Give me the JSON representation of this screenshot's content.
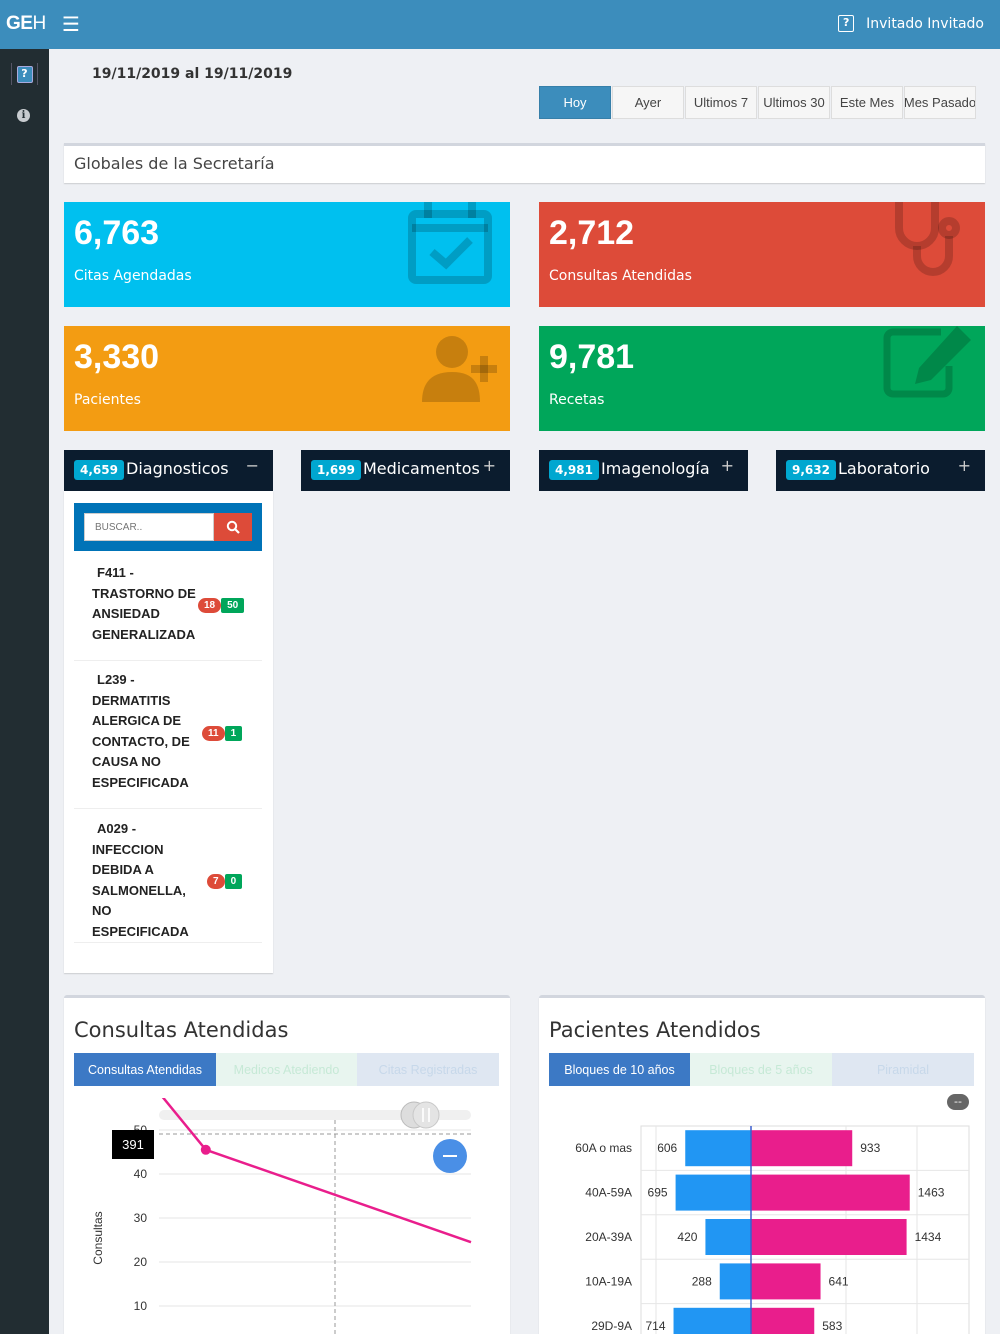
{
  "header": {
    "logo_bold": "GE",
    "logo_thin": "H",
    "menu_icon": "hamburger-icon",
    "help_icon": "?",
    "user_name": "Invitado Invitado"
  },
  "sidebar": {
    "items": [
      {
        "icon": "help-icon",
        "glyph": "?"
      },
      {
        "icon": "info-icon",
        "glyph": "i"
      }
    ]
  },
  "date_range": "19/11/2019 al 19/11/2019",
  "range_buttons": [
    {
      "label": "Hoy",
      "active": true
    },
    {
      "label": "Ayer",
      "active": false
    },
    {
      "label": "Ultimos 7",
      "active": false
    },
    {
      "label": "Ultimos 30",
      "active": false
    },
    {
      "label": "Este Mes",
      "active": false
    },
    {
      "label": "Mes Pasado",
      "active": false
    }
  ],
  "section_title": "Globales de la Secretaría",
  "stats": [
    {
      "value": "6,763",
      "label": "Citas Agendadas",
      "color": "#00c0ef",
      "icon": "calendar-check-icon"
    },
    {
      "value": "2,712",
      "label": "Consultas Atendidas",
      "color": "#dd4b39",
      "icon": "stethoscope-icon"
    },
    {
      "value": "3,330",
      "label": "Pacientes",
      "color": "#f39c12",
      "icon": "user-plus-icon"
    },
    {
      "value": "9,781",
      "label": "Recetas",
      "color": "#00a65a",
      "icon": "edit-icon"
    }
  ],
  "sections": [
    {
      "count": "4,659",
      "name": "Diagnosticos",
      "toggle": "−"
    },
    {
      "count": "1,699",
      "name": "Medicamentos",
      "toggle": "+"
    },
    {
      "count": "4,981",
      "name": "Imagenología",
      "toggle": "+"
    },
    {
      "count": "9,632",
      "name": "Laboratorio",
      "toggle": "+"
    }
  ],
  "diagnosticos": {
    "search_placeholder": "BUSCAR..",
    "items": [
      {
        "line1": "F411 -",
        "rest": "TRASTORNO DE ANSIEDAD GENERALIZADA",
        "red": "18",
        "green": "50"
      },
      {
        "line1": "L239 -",
        "rest": "DERMATITIS ALERGICA DE CONTACTO, DE CAUSA NO ESPECIFICADA",
        "red": "11",
        "green": "1"
      },
      {
        "line1": "A029 -",
        "rest": "INFECCION DEBIDA A SALMONELLA, NO ESPECIFICADA",
        "red": "7",
        "green": "0"
      }
    ]
  },
  "consultas_panel": {
    "title": "Consultas Atendidas",
    "tabs": [
      "Consultas Atendidas",
      "Medicos Atediendo",
      "Citas Registradas"
    ],
    "tooltip": "391",
    "reset_icon": "minus-icon",
    "slider_icon": "pause-icon"
  },
  "pacientes_panel": {
    "title": "Pacientes Atendidos",
    "tabs": [
      "Bloques de 10 años",
      "Bloques de 5 años",
      "Piramidal"
    ],
    "badge": "--"
  },
  "chart_data": [
    {
      "type": "line",
      "title": "",
      "xlabel": "",
      "ylabel": "Consultas",
      "y_ticks": [
        10,
        20,
        30,
        40,
        50
      ],
      "ylim": [
        5,
        50
      ],
      "series": [
        {
          "color": "#e91e8c",
          "points": [
            [
              0.0,
              58.5
            ],
            [
              0.15,
              45.5
            ],
            [
              1.0,
              24.5
            ]
          ]
        }
      ],
      "highlight_index": 1,
      "grid": true
    },
    {
      "type": "bar",
      "title": "",
      "categories": [
        "60A o mas",
        "40A-59A",
        "20A-39A",
        "10A-19A",
        "29D-9A"
      ],
      "series": [
        {
          "color": "#2196f3",
          "values": [
            606,
            695,
            420,
            288,
            714
          ]
        },
        {
          "color": "#e91e8c",
          "values": [
            933,
            1463,
            1434,
            641,
            583
          ]
        }
      ],
      "orientation": "diverging-horizontal",
      "grid": true
    }
  ]
}
